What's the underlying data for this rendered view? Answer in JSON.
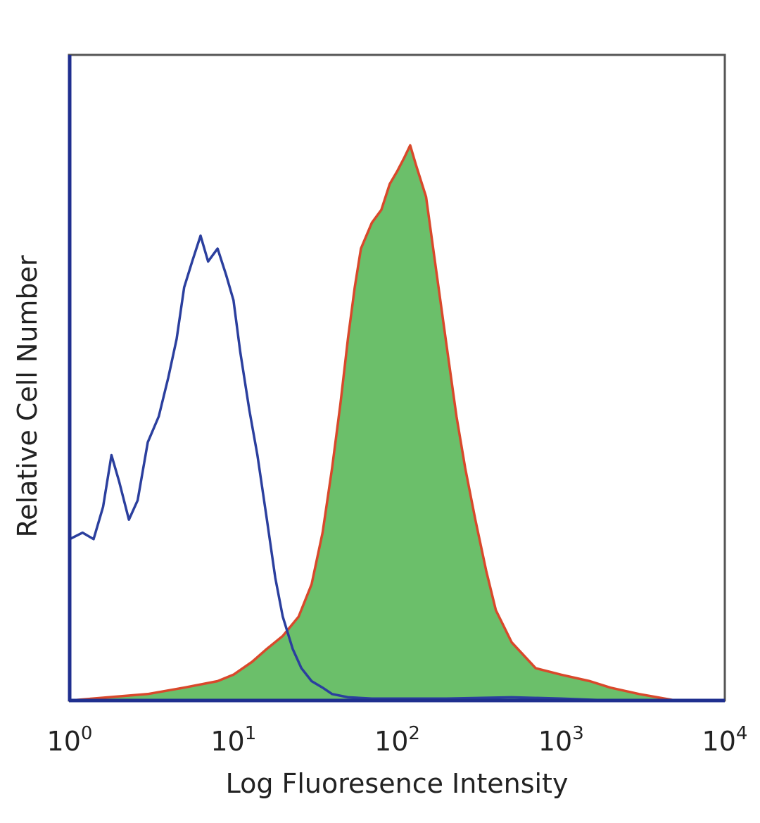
{
  "chart_data": {
    "type": "area",
    "title": "",
    "xlabel": "Log Fluoresence Intensity",
    "ylabel": "Relative Cell Number",
    "x_scale": "log",
    "xlim": [
      1,
      10000
    ],
    "ylim": [
      0,
      100
    ],
    "grid": false,
    "legend": "none",
    "x_ticks": [
      {
        "base": "10",
        "exp": "0",
        "value": 1
      },
      {
        "base": "10",
        "exp": "1",
        "value": 10
      },
      {
        "base": "10",
        "exp": "2",
        "value": 100
      },
      {
        "base": "10",
        "exp": "3",
        "value": 1000
      },
      {
        "base": "10",
        "exp": "4",
        "value": 10000
      }
    ],
    "series": [
      {
        "color": "#2b3f9e",
        "fill": "none",
        "x": [
          1,
          1.2,
          1.4,
          1.6,
          1.8,
          2.0,
          2.3,
          2.6,
          3.0,
          3.5,
          4.0,
          4.5,
          5.0,
          5.6,
          6.3,
          7.0,
          8.0,
          9.0,
          10,
          11,
          12.5,
          14,
          16,
          18,
          20,
          23,
          26,
          30,
          35,
          40,
          50,
          70,
          100,
          200,
          500,
          1000,
          2000
        ],
        "y": [
          25,
          26,
          25,
          30,
          38,
          34,
          28,
          31,
          40,
          44,
          50,
          56,
          64,
          68,
          72,
          68,
          70,
          66,
          62,
          54,
          45,
          38,
          28,
          19,
          13,
          8,
          5,
          3,
          2,
          1,
          0.5,
          0.3,
          0.3,
          0.3,
          0.5,
          0.3,
          0
        ]
      },
      {
        "color": "#d9482b",
        "fill": "#6bbf6a",
        "x": [
          1,
          3,
          5,
          8,
          10,
          13,
          16,
          20,
          25,
          30,
          35,
          40,
          45,
          50,
          55,
          60,
          70,
          80,
          90,
          100,
          110,
          120,
          130,
          150,
          170,
          200,
          230,
          260,
          300,
          350,
          400,
          500,
          700,
          1000,
          1500,
          2000,
          3000,
          5000
        ],
        "y": [
          0,
          1,
          2,
          3,
          4,
          6,
          8,
          10,
          13,
          18,
          26,
          36,
          46,
          56,
          64,
          70,
          74,
          76,
          80,
          82,
          84,
          86,
          83,
          78,
          68,
          55,
          44,
          36,
          28,
          20,
          14,
          9,
          5,
          4,
          3,
          2,
          1,
          0
        ]
      }
    ]
  }
}
